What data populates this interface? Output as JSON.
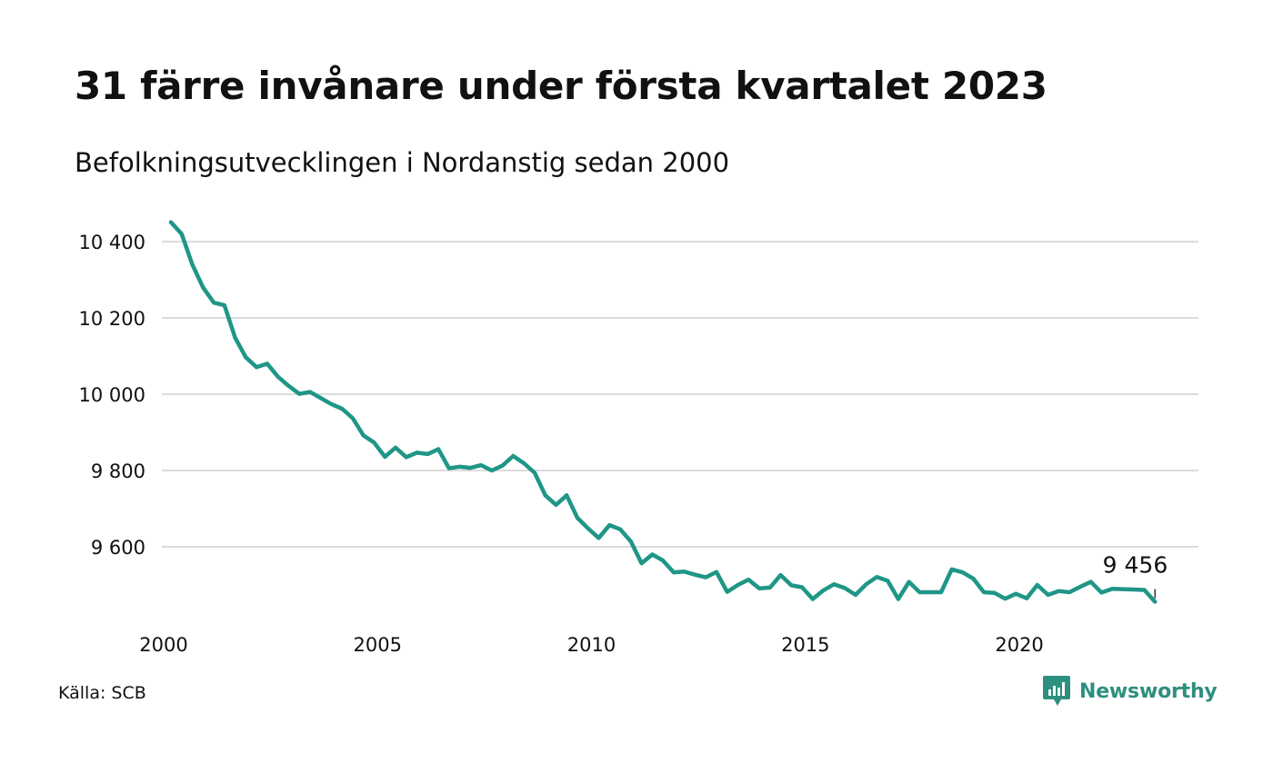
{
  "title": "31 färre invånare under första kvartalet 2023",
  "subtitle": "Befolkningsutvecklingen i Nordanstig sedan 2000",
  "source": "Källa: SCB",
  "brand": {
    "name": "Newsworthy",
    "icon": "newsworthy-logo-icon",
    "color": "#2d8f7f"
  },
  "chart_data": {
    "type": "line",
    "title": "31 färre invånare under första kvartalet 2023",
    "subtitle": "Befolkningsutvecklingen i Nordanstig sedan 2000",
    "xlabel": "",
    "ylabel": "",
    "xlim": [
      2000,
      2023.25
    ],
    "ylim": [
      9450,
      10450
    ],
    "yticks": [
      9600,
      9800,
      10000,
      10200,
      10400
    ],
    "ytick_labels": [
      "9 600",
      "9 800",
      "10 000",
      "10 200",
      "10 400"
    ],
    "xticks": [
      2000,
      2005,
      2010,
      2015,
      2020
    ],
    "xtick_labels": [
      "2000",
      "2005",
      "2010",
      "2015",
      "2020"
    ],
    "grid": "horizontal",
    "line_color": "#1f9686",
    "end_label": "9 456",
    "series": [
      {
        "start_year": 2000,
        "step": "quarter",
        "values": [
          10451,
          10420,
          10340,
          10280,
          10240,
          10233,
          10148,
          10097,
          10071,
          10080,
          10046,
          10022,
          10001,
          10006,
          9990,
          9974,
          9962,
          9937,
          9892,
          9873,
          9836,
          9860,
          9835,
          9847,
          9843,
          9856,
          9806,
          9810,
          9807,
          9814,
          9800,
          9813,
          9838,
          9819,
          9794,
          9735,
          9710,
          9735,
          9676,
          9648,
          9623,
          9657,
          9646,
          9614,
          9557,
          9580,
          9564,
          9533,
          9535,
          9527,
          9520,
          9534,
          9482,
          9500,
          9514,
          9491,
          9493,
          9526,
          9499,
          9494,
          9463,
          9486,
          9502,
          9492,
          9474,
          9502,
          9521,
          9511,
          9463,
          9508,
          9481,
          9481,
          9481,
          9541,
          9533,
          9517,
          9481,
          9479,
          9464,
          9477,
          9465,
          9500,
          9474,
          9484,
          9481,
          9495,
          9508,
          9480,
          9490,
          9489,
          9488,
          9487,
          9456
        ]
      }
    ]
  }
}
